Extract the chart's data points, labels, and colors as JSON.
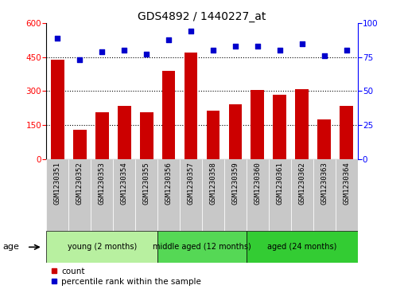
{
  "title": "GDS4892 / 1440227_at",
  "samples": [
    "GSM1230351",
    "GSM1230352",
    "GSM1230353",
    "GSM1230354",
    "GSM1230355",
    "GSM1230356",
    "GSM1230357",
    "GSM1230358",
    "GSM1230359",
    "GSM1230360",
    "GSM1230361",
    "GSM1230362",
    "GSM1230363",
    "GSM1230364"
  ],
  "counts": [
    440,
    130,
    205,
    235,
    205,
    390,
    470,
    215,
    240,
    305,
    285,
    310,
    175,
    235
  ],
  "pct_vals": [
    89,
    73,
    79,
    80,
    77,
    88,
    94,
    80,
    83,
    83,
    80,
    85,
    76,
    80
  ],
  "groups": [
    {
      "label": "young (2 months)",
      "start": 0,
      "end": 5,
      "color": "#b8f0a0"
    },
    {
      "label": "middle aged (12 months)",
      "start": 5,
      "end": 9,
      "color": "#55d855"
    },
    {
      "label": "aged (24 months)",
      "start": 9,
      "end": 14,
      "color": "#33cc33"
    }
  ],
  "bar_color": "#CC0000",
  "dot_color": "#0000CC",
  "ylim_left": [
    0,
    600
  ],
  "ylim_right": [
    0,
    100
  ],
  "yticks_left": [
    0,
    150,
    300,
    450,
    600
  ],
  "yticks_right": [
    0,
    25,
    50,
    75,
    100
  ],
  "grid_values": [
    150,
    300,
    450
  ],
  "tick_label_bg": "#c8c8c8"
}
